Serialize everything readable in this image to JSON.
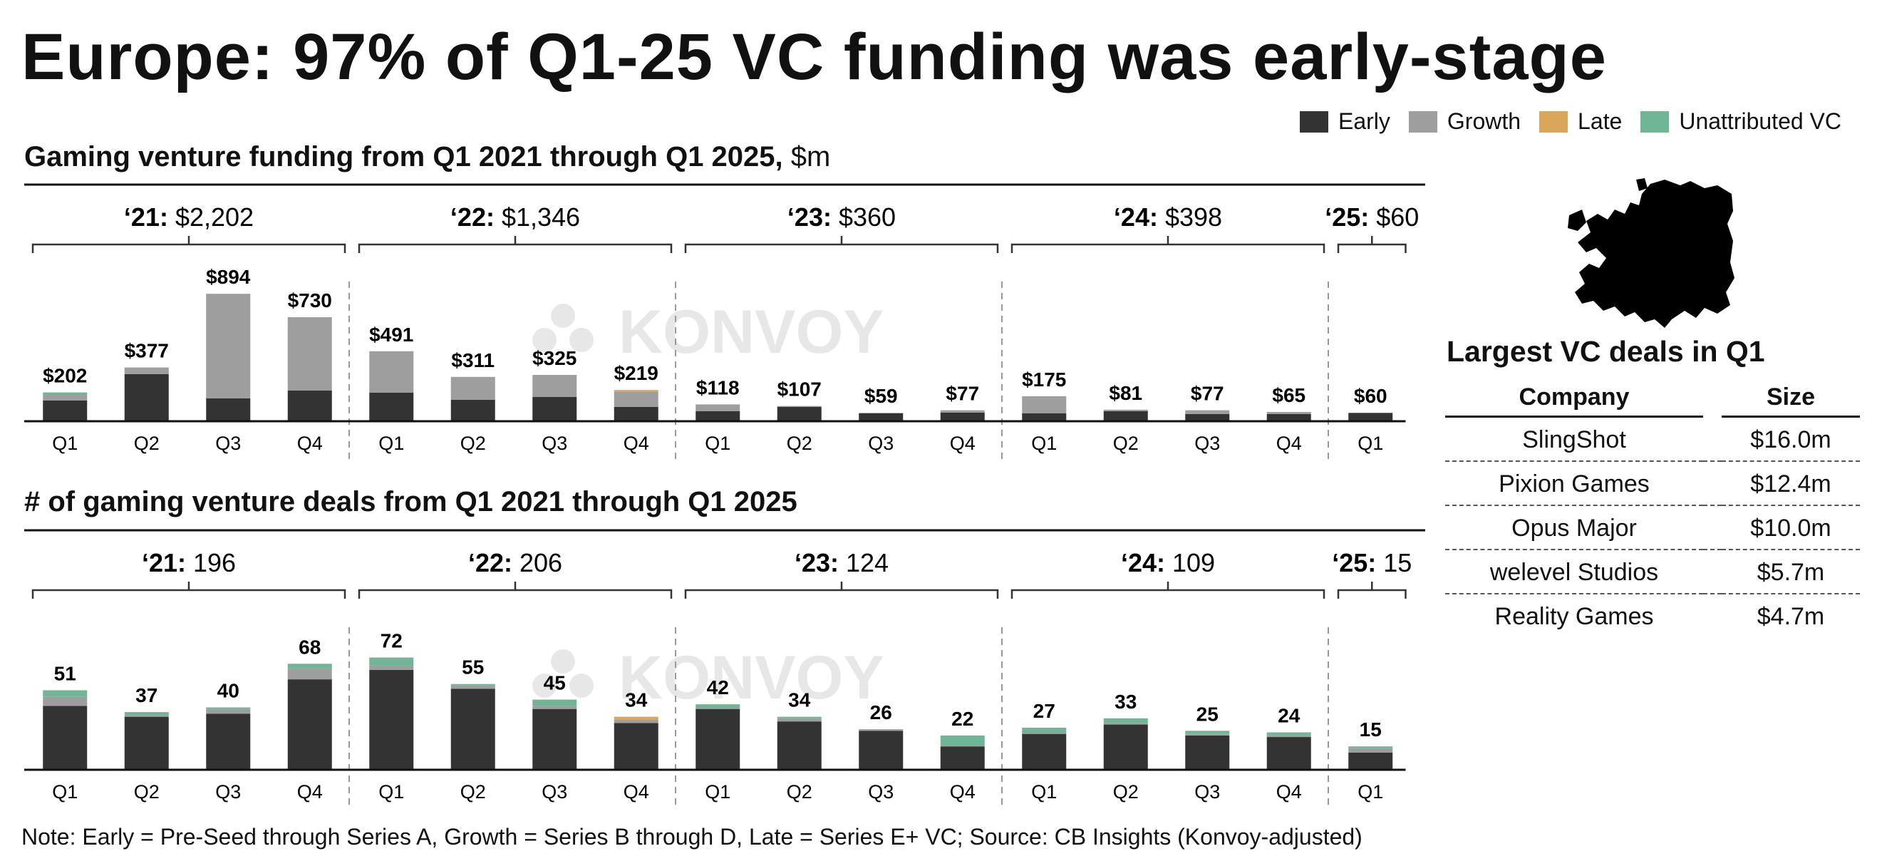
{
  "title": "Europe: 97% of Q1-25 VC funding was early-stage",
  "legend": [
    {
      "label": "Early",
      "color": "#333333"
    },
    {
      "label": "Growth",
      "color": "#9e9e9e"
    },
    {
      "label": "Late",
      "color": "#d9a65a"
    },
    {
      "label": "Unattributed VC",
      "color": "#6fb596"
    }
  ],
  "watermark": "KONVOY",
  "chart_data": [
    {
      "type": "bar",
      "stacked": true,
      "title": "Gaming venture funding from Q1 2021 through Q1 2025,",
      "unit": "$m",
      "categories": [
        "Q1",
        "Q2",
        "Q3",
        "Q4",
        "Q1",
        "Q2",
        "Q3",
        "Q4",
        "Q1",
        "Q2",
        "Q3",
        "Q4",
        "Q1",
        "Q2",
        "Q3",
        "Q4",
        "Q1"
      ],
      "groups": [
        {
          "year": "‘21:",
          "total": "$2,202",
          "count": 4
        },
        {
          "year": "‘22:",
          "total": "$1,346",
          "count": 4
        },
        {
          "year": "‘23:",
          "total": "$360",
          "count": 4
        },
        {
          "year": "‘24:",
          "total": "$398",
          "count": 4
        },
        {
          "year": "‘25:",
          "total": "$60",
          "count": 1
        }
      ],
      "labels": [
        "$202",
        "$377",
        "$894",
        "$730",
        "$491",
        "$311",
        "$325",
        "$219",
        "$118",
        "$107",
        "$59",
        "$77",
        "$175",
        "$81",
        "$77",
        "$65",
        "$60"
      ],
      "totals": [
        202,
        377,
        894,
        730,
        491,
        311,
        325,
        219,
        118,
        107,
        59,
        77,
        175,
        81,
        77,
        65,
        60
      ],
      "series": [
        {
          "name": "Early",
          "values": [
            145,
            330,
            160,
            215,
            200,
            150,
            170,
            100,
            70,
            100,
            55,
            60,
            55,
            70,
            50,
            50,
            58
          ]
        },
        {
          "name": "Growth",
          "values": [
            45,
            47,
            734,
            515,
            291,
            161,
            155,
            105,
            48,
            7,
            4,
            17,
            120,
            11,
            27,
            15,
            2
          ]
        },
        {
          "name": "Late",
          "values": [
            0,
            0,
            0,
            0,
            0,
            0,
            0,
            14,
            0,
            0,
            0,
            0,
            0,
            0,
            0,
            0,
            0
          ]
        },
        {
          "name": "Unattributed VC",
          "values": [
            12,
            0,
            0,
            0,
            0,
            0,
            0,
            0,
            0,
            0,
            0,
            0,
            0,
            0,
            0,
            0,
            0
          ]
        }
      ],
      "ylim": [
        0,
        950
      ]
    },
    {
      "type": "bar",
      "stacked": true,
      "title": "# of gaming venture deals from Q1 2021 through Q1 2025",
      "unit": "",
      "categories": [
        "Q1",
        "Q2",
        "Q3",
        "Q4",
        "Q1",
        "Q2",
        "Q3",
        "Q4",
        "Q1",
        "Q2",
        "Q3",
        "Q4",
        "Q1",
        "Q2",
        "Q3",
        "Q4",
        "Q1"
      ],
      "groups": [
        {
          "year": "‘21:",
          "total": "196",
          "count": 4
        },
        {
          "year": "‘22:",
          "total": "206",
          "count": 4
        },
        {
          "year": "‘23:",
          "total": "124",
          "count": 4
        },
        {
          "year": "‘24:",
          "total": "109",
          "count": 4
        },
        {
          "year": "‘25:",
          "total": "15",
          "count": 1
        }
      ],
      "labels": [
        "51",
        "37",
        "40",
        "68",
        "72",
        "55",
        "45",
        "34",
        "42",
        "34",
        "26",
        "22",
        "27",
        "33",
        "25",
        "24",
        "15"
      ],
      "totals": [
        51,
        37,
        40,
        68,
        72,
        55,
        45,
        34,
        42,
        34,
        26,
        22,
        27,
        33,
        25,
        24,
        15
      ],
      "series": [
        {
          "name": "Early",
          "values": [
            41,
            34,
            36,
            58,
            64,
            52,
            39,
            30,
            39,
            31,
            25,
            15,
            23,
            29,
            22,
            21,
            11
          ]
        },
        {
          "name": "Growth",
          "values": [
            6,
            1,
            3,
            7,
            3,
            2,
            2,
            2,
            1,
            2,
            1,
            1,
            1,
            1,
            1,
            1,
            3
          ]
        },
        {
          "name": "Late",
          "values": [
            0,
            0,
            0,
            0,
            0,
            0,
            0,
            2,
            0,
            0,
            0,
            0,
            0,
            0,
            0,
            0,
            0
          ]
        },
        {
          "name": "Unattributed VC",
          "values": [
            4,
            2,
            1,
            3,
            5,
            1,
            4,
            0,
            2,
            1,
            0,
            6,
            3,
            3,
            2,
            2,
            1
          ]
        }
      ],
      "ylim": [
        0,
        80
      ]
    }
  ],
  "largest_deals": {
    "title": "Largest VC deals in Q1",
    "headers": {
      "company": "Company",
      "size": "Size"
    },
    "rows": [
      {
        "company": "SlingShot",
        "size": "$16.0m"
      },
      {
        "company": "Pixion Games",
        "size": "$12.4m"
      },
      {
        "company": "Opus Major",
        "size": "$10.0m"
      },
      {
        "company": "welevel Studios",
        "size": "$5.7m"
      },
      {
        "company": "Reality Games",
        "size": "$4.7m"
      }
    ]
  },
  "note": "Note: Early = Pre-Seed through Series A, Growth = Series B through D, Late = Series E+ VC; Source: CB Insights (Konvoy-adjusted)"
}
